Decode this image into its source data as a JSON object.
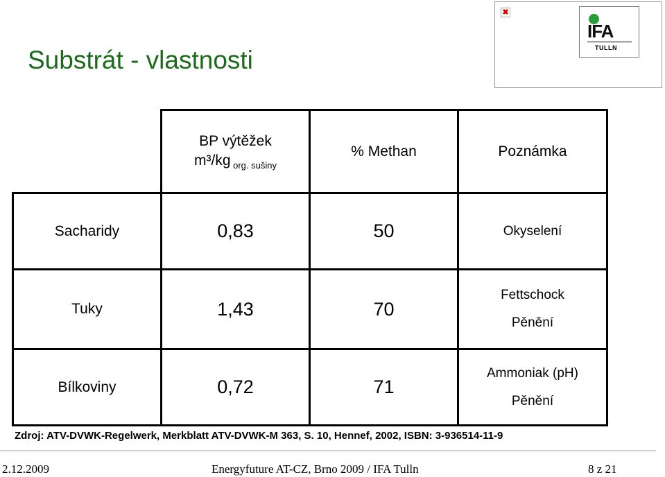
{
  "slide": {
    "title": "Substrát - vlastnosti",
    "source": "Zdroj: ATV-DVWK-Regelwerk, Merkblatt ATV-DVWK-M 363, S. 10, Hennef, 2002, ISBN: 3-936514-11-9"
  },
  "logo": {
    "broken_image_mark": "✖",
    "brand": "IFA",
    "subtitle": "TULLN",
    "brand_color": "#2a9d3a"
  },
  "table": {
    "headers": {
      "yield_line1": "BP výtěžek",
      "yield_line2": "m³/kg",
      "yield_sub": " org. sušiny",
      "methane": "% Methan",
      "note": "Poznámka"
    },
    "rows": [
      {
        "label": "Sacharidy",
        "yield": "0,83",
        "methane": "50",
        "note1": "Okyselení",
        "note2": ""
      },
      {
        "label": "Tuky",
        "yield": "1,43",
        "methane": "70",
        "note1": "Fettschock",
        "note2": "Pěnění"
      },
      {
        "label": "Bílkoviny",
        "yield": "0,72",
        "methane": "71",
        "note1": "Ammoniak (pH)",
        "note2": "Pěnění"
      }
    ]
  },
  "footer": {
    "date": "2.12.2009",
    "event": "Energyfuture AT-CZ, Brno 2009 / IFA Tulln",
    "page": "8 z 21"
  },
  "colors": {
    "title": "#1a6b1a",
    "border": "#000000",
    "footer_rule": "#cfcfcf"
  }
}
